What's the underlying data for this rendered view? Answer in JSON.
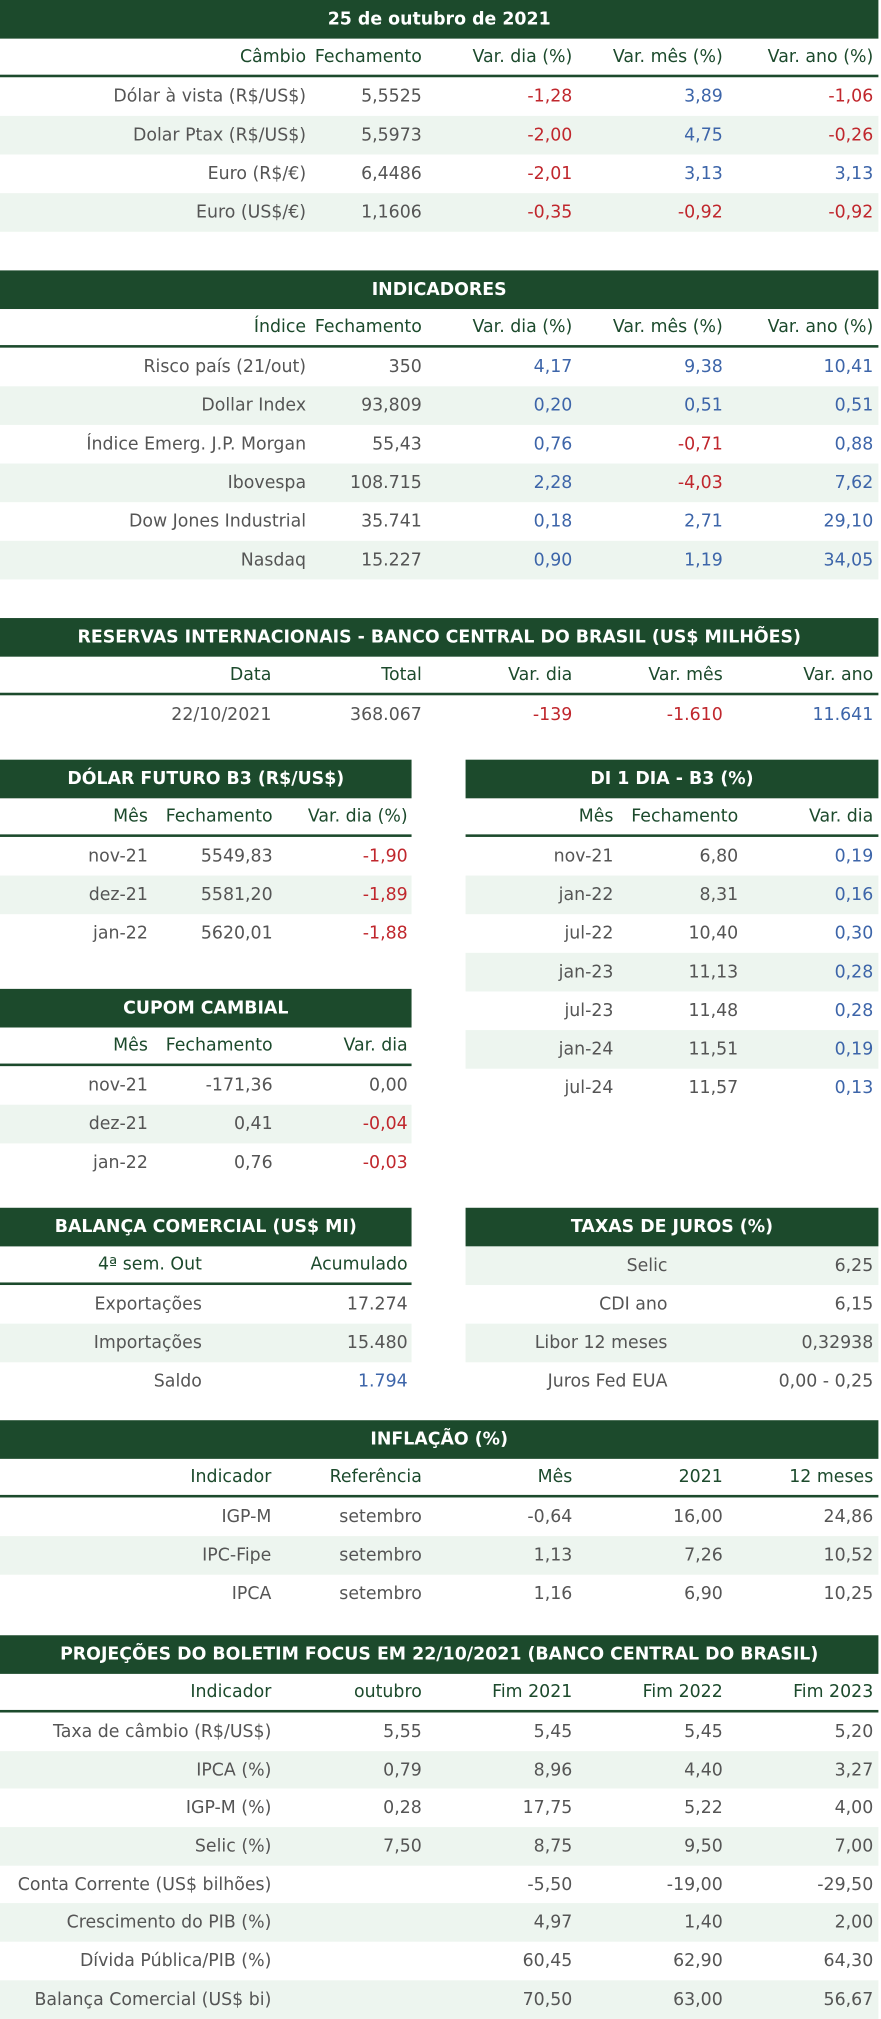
{
  "colors": {
    "negative": "#c0272d",
    "positive": "#3d65a9"
  },
  "tables": [
    {
      "title": "25 de outubro de 2021",
      "columns": [
        "Câmbio",
        "Fechamento",
        "Var. dia (%)",
        "Var. mês (%)",
        "Var. ano (%)"
      ],
      "rows": [
        [
          "Dólar à vista (R$/US$)",
          "5,5525",
          "-1,28",
          "3,89",
          "-1,06"
        ],
        [
          "Dolar Ptax (R$/US$)",
          "5,5973",
          "-2,00",
          "4,75",
          "-0,26"
        ],
        [
          "Euro (R$/€)",
          "6,4486",
          "-2,01",
          "3,13",
          "3,13"
        ],
        [
          "Euro (US$/€)",
          "1,1606",
          "-0,35",
          "-0,92",
          "-0,92"
        ]
      ],
      "signed_columns": [
        2,
        3,
        4
      ]
    },
    {
      "title": "INDICADORES",
      "columns": [
        "Índice",
        "Fechamento",
        "Var. dia (%)",
        "Var. mês (%)",
        "Var. ano (%)"
      ],
      "rows": [
        [
          "Risco país (21/out)",
          "350",
          "4,17",
          "9,38",
          "10,41"
        ],
        [
          "Dollar Index",
          "93,809",
          "0,20",
          "0,51",
          "0,51"
        ],
        [
          "Índice Emerg. J.P. Morgan",
          "55,43",
          "0,76",
          "-0,71",
          "0,88"
        ],
        [
          "Ibovespa",
          "108.715",
          "2,28",
          "-4,03",
          "7,62"
        ],
        [
          "Dow Jones Industrial",
          "35.741",
          "0,18",
          "2,71",
          "29,10"
        ],
        [
          "Nasdaq",
          "15.227",
          "0,90",
          "1,19",
          "34,05"
        ]
      ],
      "signed_columns": [
        2,
        3,
        4
      ]
    },
    {
      "title": "RESERVAS INTERNACIONAIS - BANCO CENTRAL DO BRASIL (US$ MILHÕES)",
      "columns": [
        "Data",
        "Total",
        "Var. dia",
        "Var. mês",
        "Var. ano"
      ],
      "rows": [
        [
          "22/10/2021",
          "368.067",
          "-139",
          "-1.610",
          "11.641"
        ]
      ],
      "signed_columns": [
        2,
        3,
        4
      ]
    },
    {
      "title": "DÓLAR FUTURO B3 (R$/US$)",
      "columns": [
        "Mês",
        "Fechamento",
        "Var. dia (%)"
      ],
      "rows": [
        [
          "nov-21",
          "5549,83",
          "-1,90"
        ],
        [
          "dez-21",
          "5581,20",
          "-1,89"
        ],
        [
          "jan-22",
          "5620,01",
          "-1,88"
        ]
      ],
      "signed_columns": [
        2
      ]
    },
    {
      "title": "DI 1 DIA - B3 (%)",
      "columns": [
        "Mês",
        "Fechamento",
        "Var. dia"
      ],
      "rows": [
        [
          "nov-21",
          "6,80",
          "0,19"
        ],
        [
          "jan-22",
          "8,31",
          "0,16"
        ],
        [
          "jul-22",
          "10,40",
          "0,30"
        ],
        [
          "jan-23",
          "11,13",
          "0,28"
        ],
        [
          "jul-23",
          "11,48",
          "0,28"
        ],
        [
          "jan-24",
          "11,51",
          "0,19"
        ],
        [
          "jul-24",
          "11,57",
          "0,13"
        ]
      ],
      "signed_columns": [
        2
      ]
    },
    {
      "title": "CUPOM CAMBIAL",
      "columns": [
        "Mês",
        "Fechamento",
        "Var. dia"
      ],
      "rows": [
        [
          "nov-21",
          "-171,36",
          "0,00"
        ],
        [
          "dez-21",
          "0,41",
          "-0,04"
        ],
        [
          "jan-22",
          "0,76",
          "-0,03"
        ]
      ],
      "signed_columns": [
        2
      ]
    },
    {
      "title": "BALANÇA COMERCIAL (US$ MI)",
      "columns": [
        "4ª sem. Out",
        "Acumulado"
      ],
      "rows": [
        [
          "Exportações",
          "17.274"
        ],
        [
          "Importações",
          "15.480"
        ],
        [
          "Saldo",
          "1.794"
        ]
      ],
      "signed_cells": [
        [
          2,
          1
        ]
      ]
    },
    {
      "title": "TAXAS DE JUROS (%)",
      "rows": [
        [
          "Selic",
          "6,25"
        ],
        [
          "CDI ano",
          "6,15"
        ],
        [
          "Libor 12 meses",
          "0,32938"
        ],
        [
          "Juros Fed EUA",
          "0,00 - 0,25"
        ]
      ]
    },
    {
      "title": "INFLAÇÃO (%)",
      "columns": [
        "Indicador",
        "Referência",
        "Mês",
        "2021",
        "12 meses"
      ],
      "rows": [
        [
          "IGP-M",
          "setembro",
          "-0,64",
          "16,00",
          "24,86"
        ],
        [
          "IPC-Fipe",
          "setembro",
          "1,13",
          "7,26",
          "10,52"
        ],
        [
          "IPCA",
          "setembro",
          "1,16",
          "6,90",
          "10,25"
        ]
      ]
    },
    {
      "title": "PROJEÇÕES DO BOLETIM FOCUS EM 22/10/2021 (BANCO CENTRAL DO BRASIL)",
      "columns": [
        "Indicador",
        "outubro",
        "Fim 2021",
        "Fim 2022",
        "Fim 2023"
      ],
      "rows": [
        [
          "Taxa de câmbio (R$/US$)",
          "5,55",
          "5,45",
          "5,45",
          "5,20"
        ],
        [
          "IPCA (%)",
          "0,79",
          "8,96",
          "4,40",
          "3,27"
        ],
        [
          "IGP-M (%)",
          "0,28",
          "17,75",
          "5,22",
          "4,00"
        ],
        [
          "Selic (%)",
          "7,50",
          "8,75",
          "9,50",
          "7,00"
        ],
        [
          "Conta Corrente (US$ bilhões)",
          null,
          "-5,50",
          "-19,00",
          "-29,50"
        ],
        [
          "Crescimento do PIB (%)",
          null,
          "4,97",
          "1,40",
          "2,00"
        ],
        [
          "Dívida Pública/PIB (%)",
          null,
          "60,45",
          "62,90",
          "64,30"
        ],
        [
          "Balança Comercial (US$ bi)",
          null,
          "70,50",
          "63,00",
          "56,67"
        ]
      ]
    }
  ]
}
